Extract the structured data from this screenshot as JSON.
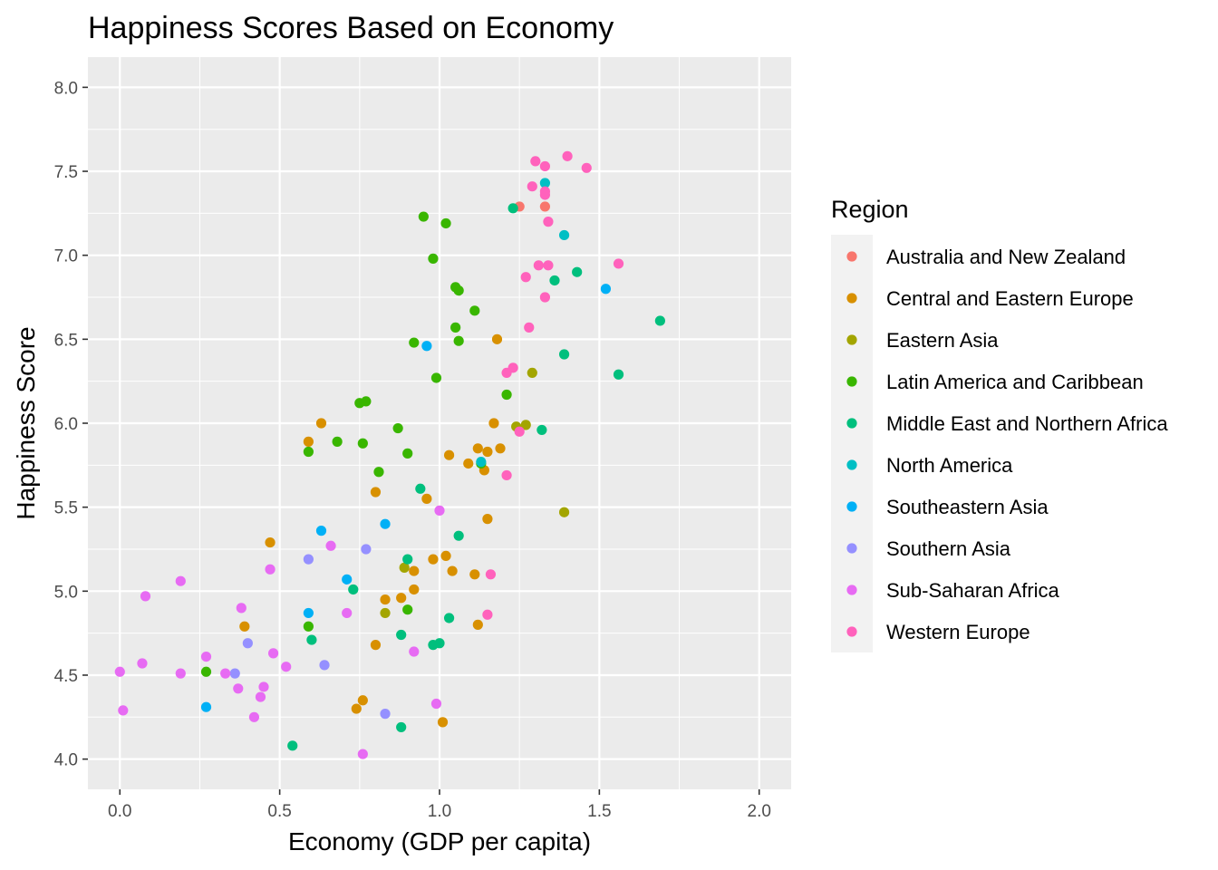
{
  "chart_data": {
    "type": "scatter",
    "title": "Happiness Scores Based on Economy",
    "xlabel": "Economy (GDP per capita)",
    "ylabel": "Happiness Score",
    "xlim": [
      -0.1,
      2.1
    ],
    "ylim": [
      3.82,
      8.18
    ],
    "x_ticks": [
      0.0,
      0.5,
      1.0,
      1.5,
      2.0
    ],
    "x_tick_labels": [
      "0.0",
      "0.5",
      "1.0",
      "1.5",
      "2.0"
    ],
    "y_ticks": [
      4.0,
      4.5,
      5.0,
      5.5,
      6.0,
      6.5,
      7.0,
      7.5,
      8.0
    ],
    "y_tick_labels": [
      "4.0",
      "4.5",
      "5.0",
      "5.5",
      "6.0",
      "6.5",
      "7.0",
      "7.5",
      "8.0"
    ],
    "grid": true,
    "legend": {
      "title": "Region",
      "position": "right"
    },
    "series": [
      {
        "name": "Australia and New Zealand",
        "color": "#F8766D",
        "points": [
          [
            1.25,
            7.29
          ],
          [
            1.33,
            7.29
          ]
        ]
      },
      {
        "name": "Central and Eastern Europe",
        "color": "#D89000",
        "points": [
          [
            0.59,
            5.89
          ],
          [
            0.63,
            6.0
          ],
          [
            0.47,
            5.29
          ],
          [
            0.39,
            4.79
          ],
          [
            0.8,
            5.59
          ],
          [
            0.96,
            5.55
          ],
          [
            1.18,
            6.5
          ],
          [
            1.17,
            6.0
          ],
          [
            1.03,
            5.81
          ],
          [
            1.09,
            5.76
          ],
          [
            1.12,
            5.85
          ],
          [
            1.15,
            5.83
          ],
          [
            1.19,
            5.85
          ],
          [
            1.14,
            5.72
          ],
          [
            1.15,
            5.43
          ],
          [
            1.02,
            5.21
          ],
          [
            0.98,
            5.19
          ],
          [
            0.92,
            5.12
          ],
          [
            0.92,
            5.01
          ],
          [
            0.88,
            4.96
          ],
          [
            0.83,
            4.95
          ],
          [
            1.04,
            5.12
          ],
          [
            1.11,
            5.1
          ],
          [
            1.12,
            4.8
          ],
          [
            0.8,
            4.68
          ],
          [
            0.74,
            4.3
          ],
          [
            0.76,
            4.35
          ],
          [
            1.01,
            4.22
          ]
        ]
      },
      {
        "name": "Eastern Asia",
        "color": "#A3A500",
        "points": [
          [
            1.29,
            6.3
          ],
          [
            1.24,
            5.98
          ],
          [
            1.27,
            5.99
          ],
          [
            1.39,
            5.47
          ],
          [
            0.89,
            5.14
          ],
          [
            0.83,
            4.87
          ]
        ]
      },
      {
        "name": "Latin America and Caribbean",
        "color": "#39B600",
        "points": [
          [
            0.95,
            7.23
          ],
          [
            1.02,
            7.19
          ],
          [
            0.98,
            6.98
          ],
          [
            1.05,
            6.81
          ],
          [
            1.06,
            6.79
          ],
          [
            1.11,
            6.67
          ],
          [
            1.05,
            6.57
          ],
          [
            0.92,
            6.48
          ],
          [
            1.06,
            6.49
          ],
          [
            0.99,
            6.27
          ],
          [
            1.21,
            6.17
          ],
          [
            0.75,
            6.12
          ],
          [
            0.77,
            6.13
          ],
          [
            0.87,
            5.97
          ],
          [
            0.68,
            5.89
          ],
          [
            0.76,
            5.88
          ],
          [
            0.59,
            5.83
          ],
          [
            0.9,
            5.82
          ],
          [
            0.81,
            5.71
          ],
          [
            1.13,
            5.76
          ],
          [
            0.59,
            4.79
          ],
          [
            0.9,
            4.89
          ],
          [
            0.27,
            4.52
          ]
        ]
      },
      {
        "name": "Middle East and Northern Africa",
        "color": "#00BF7D",
        "points": [
          [
            1.23,
            7.28
          ],
          [
            1.43,
            6.9
          ],
          [
            1.36,
            6.85
          ],
          [
            1.69,
            6.61
          ],
          [
            1.39,
            6.41
          ],
          [
            1.56,
            6.29
          ],
          [
            1.32,
            5.96
          ],
          [
            0.94,
            5.61
          ],
          [
            1.06,
            5.33
          ],
          [
            0.9,
            5.19
          ],
          [
            0.73,
            5.01
          ],
          [
            1.03,
            4.84
          ],
          [
            0.6,
            4.71
          ],
          [
            0.88,
            4.74
          ],
          [
            0.98,
            4.68
          ],
          [
            1.0,
            4.69
          ],
          [
            0.88,
            4.19
          ],
          [
            0.54,
            4.08
          ]
        ]
      },
      {
        "name": "North America",
        "color": "#00BFC4",
        "points": [
          [
            1.33,
            7.43
          ],
          [
            1.39,
            7.12
          ],
          [
            1.13,
            5.77
          ]
        ]
      },
      {
        "name": "Southeastern Asia",
        "color": "#00B0F6",
        "points": [
          [
            1.52,
            6.8
          ],
          [
            0.96,
            6.46
          ],
          [
            0.63,
            5.36
          ],
          [
            0.83,
            5.4
          ],
          [
            0.71,
            5.07
          ],
          [
            0.59,
            4.87
          ],
          [
            0.27,
            4.31
          ]
        ]
      },
      {
        "name": "Southern Asia",
        "color": "#9590FF",
        "points": [
          [
            0.77,
            5.25
          ],
          [
            0.59,
            5.19
          ],
          [
            0.4,
            4.69
          ],
          [
            0.36,
            4.51
          ],
          [
            0.64,
            4.56
          ],
          [
            0.83,
            4.27
          ]
        ]
      },
      {
        "name": "Sub-Saharan Africa",
        "color": "#E76BF3",
        "points": [
          [
            1.0,
            5.48
          ],
          [
            0.66,
            5.27
          ],
          [
            0.47,
            5.13
          ],
          [
            0.19,
            5.06
          ],
          [
            0.08,
            4.97
          ],
          [
            0.38,
            4.9
          ],
          [
            0.71,
            4.87
          ],
          [
            0.27,
            4.61
          ],
          [
            0.48,
            4.63
          ],
          [
            0.52,
            4.55
          ],
          [
            0.07,
            4.57
          ],
          [
            0.0,
            4.52
          ],
          [
            0.19,
            4.51
          ],
          [
            0.33,
            4.51
          ],
          [
            0.37,
            4.42
          ],
          [
            0.45,
            4.43
          ],
          [
            0.44,
            4.37
          ],
          [
            0.42,
            4.25
          ],
          [
            0.92,
            4.64
          ],
          [
            0.99,
            4.33
          ],
          [
            0.01,
            4.29
          ],
          [
            0.76,
            4.03
          ]
        ]
      },
      {
        "name": "Western Europe",
        "color": "#FF62BC",
        "points": [
          [
            1.4,
            7.59
          ],
          [
            1.3,
            7.56
          ],
          [
            1.33,
            7.53
          ],
          [
            1.46,
            7.52
          ],
          [
            1.29,
            7.41
          ],
          [
            1.33,
            7.38
          ],
          [
            1.33,
            7.36
          ],
          [
            1.34,
            7.2
          ],
          [
            1.31,
            6.94
          ],
          [
            1.34,
            6.94
          ],
          [
            1.56,
            6.95
          ],
          [
            1.27,
            6.87
          ],
          [
            1.33,
            6.75
          ],
          [
            1.28,
            6.57
          ],
          [
            1.23,
            6.33
          ],
          [
            1.21,
            6.3
          ],
          [
            1.25,
            5.95
          ],
          [
            1.21,
            5.69
          ],
          [
            1.16,
            5.1
          ],
          [
            1.15,
            4.86
          ]
        ]
      }
    ]
  }
}
